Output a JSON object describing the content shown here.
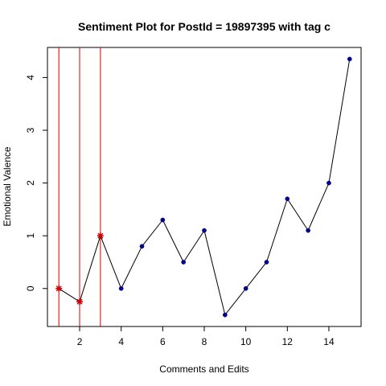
{
  "chart_data": {
    "type": "line",
    "title": "Sentiment Plot for PostId =  19897395  with tag  c",
    "xlabel": "Comments and Edits",
    "ylabel": "Emotional Valence",
    "xlim": [
      0.45,
      15.55
    ],
    "ylim": [
      -0.72,
      4.57
    ],
    "x_ticks": [
      2,
      4,
      6,
      8,
      10,
      12,
      14
    ],
    "y_ticks": [
      0,
      1,
      2,
      3,
      4
    ],
    "x": [
      1,
      2,
      3,
      4,
      5,
      6,
      7,
      8,
      9,
      10,
      11,
      12,
      13,
      14,
      15
    ],
    "y": [
      0,
      -0.25,
      1,
      0,
      0.8,
      1.3,
      0.5,
      1.1,
      -0.5,
      0,
      0.5,
      1.7,
      1.1,
      2,
      4.35
    ],
    "highlight_x": [
      1,
      2,
      3
    ],
    "vertical_lines_x": [
      1,
      2,
      3
    ],
    "grid": false,
    "colors": {
      "line": "#000000",
      "point": "#00008b",
      "highlight_point": "#cc0000",
      "vline": "#cc0000"
    }
  }
}
